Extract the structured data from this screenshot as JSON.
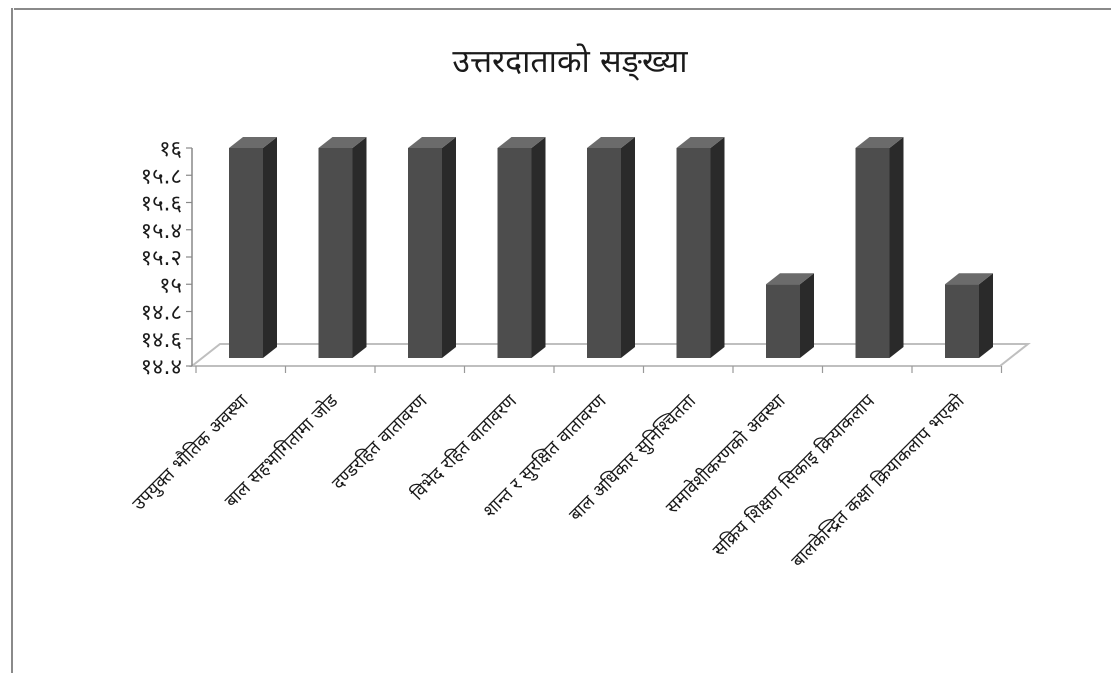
{
  "chart_data": {
    "type": "bar",
    "title": "उत्तरदाताको सङ्ख्या",
    "categories": [
      "उपयुक्त भौतिक अवस्था",
      "बाल सहभागितामा जोड",
      "दण्डरहित वातावरण",
      "विभेद रहित वातावरण",
      "शान्त र सुरक्षित वातावरण",
      "बाल अधिकार सुनिश्चितता",
      "समावेशीकरणको अवस्था",
      "सक्रिय शिक्षण सिकाइ क्रियाकलाप",
      "बालकेन्द्रित कक्षा क्रियाकलाप भएको"
    ],
    "values": [
      16,
      16,
      16,
      16,
      16,
      16,
      15,
      16,
      15
    ],
    "ylim": [
      14.4,
      16
    ],
    "yticks": [
      14.4,
      14.6,
      14.8,
      15,
      15.2,
      15.4,
      15.6,
      15.8,
      16
    ],
    "ytick_labels": [
      "१४.४",
      "१४.६",
      "१४.८",
      "१५",
      "१५.२",
      "१५.४",
      "१५.६",
      "१५.८",
      "१६"
    ],
    "grid": false,
    "legend": "none",
    "bar_style": "3d",
    "colors": {
      "bar_front": "#4d4d4d",
      "bar_side": "#2a2a2a",
      "bar_top": "#6b6b6b",
      "floor": "#bfbfbf"
    }
  }
}
